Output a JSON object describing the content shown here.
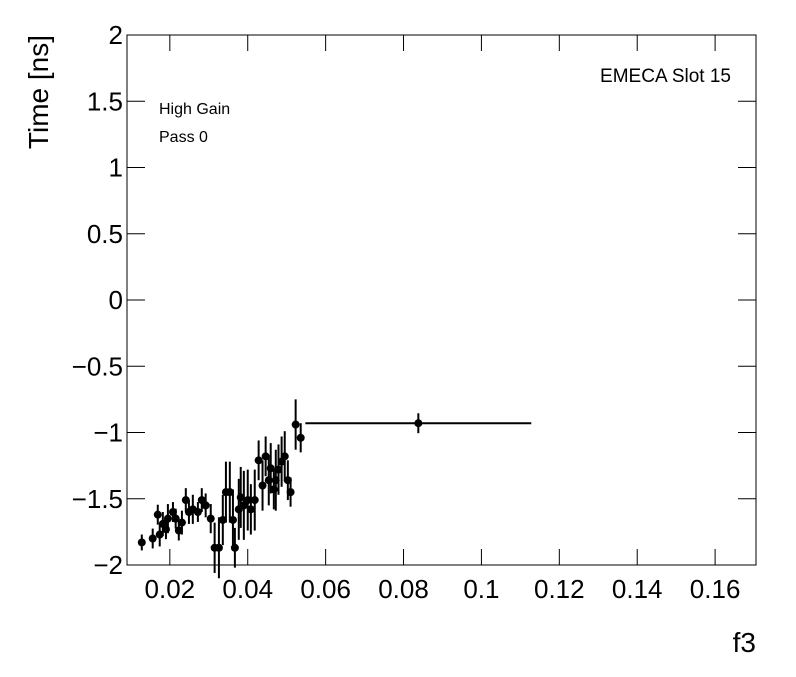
{
  "chart_data": {
    "type": "scatter",
    "x_label": "f3",
    "y_label": "Time [ns]",
    "annotations": [
      "EMECA Slot 15",
      "High Gain",
      "Pass 0"
    ],
    "xlim": [
      0.009,
      0.1705
    ],
    "ylim": [
      -2,
      2
    ],
    "xticks": [
      0.02,
      0.04,
      0.06,
      0.08,
      0.1,
      0.12,
      0.14,
      0.16
    ],
    "yticks": [
      {
        "value": -2,
        "label": "−2"
      },
      {
        "value": -1.5,
        "label": "−1.5"
      },
      {
        "value": -1,
        "label": "−1"
      },
      {
        "value": -0.5,
        "label": "−0.5"
      },
      0,
      0.5,
      1,
      1.5,
      2
    ],
    "series": [
      {
        "color": "#000000",
        "x": [
          0.0128,
          0.0156,
          0.0169,
          0.0174,
          0.0182,
          0.019,
          0.0195,
          0.0208,
          0.0215,
          0.0223,
          0.0231,
          0.0241,
          0.0249,
          0.0259,
          0.0272,
          0.0282,
          0.0292,
          0.0305,
          0.0315,
          0.0326,
          0.0336,
          0.0344,
          0.0354,
          0.0362,
          0.0367,
          0.0377,
          0.0382,
          0.039,
          0.04,
          0.0408,
          0.0418,
          0.0428,
          0.0438,
          0.0446,
          0.0454,
          0.0459,
          0.0467,
          0.0472,
          0.0479,
          0.0487,
          0.0495,
          0.0503,
          0.051,
          0.0523,
          0.0536,
          0.0838
        ],
        "values": [
          -1.83,
          -1.8,
          -1.62,
          -1.77,
          -1.69,
          -1.73,
          -1.65,
          -1.6,
          -1.65,
          -1.74,
          -1.68,
          -1.51,
          -1.6,
          -1.58,
          -1.6,
          -1.51,
          -1.55,
          -1.65,
          -1.87,
          -1.87,
          -1.66,
          -1.45,
          -1.45,
          -1.66,
          -1.87,
          -1.58,
          -1.49,
          -1.55,
          -1.51,
          -1.58,
          -1.51,
          -1.21,
          -1.4,
          -1.18,
          -1.36,
          -1.27,
          -1.43,
          -1.36,
          -1.28,
          -1.22,
          -1.18,
          -1.36,
          -1.45,
          -0.94,
          -1.04,
          -0.93
        ],
        "yerr": [
          0.06,
          0.075,
          0.075,
          0.09,
          0.09,
          0.075,
          0.11,
          0.075,
          0.075,
          0.075,
          0.09,
          0.09,
          0.09,
          0.11,
          0.075,
          0.09,
          0.09,
          0.11,
          0.19,
          0.23,
          0.19,
          0.23,
          0.23,
          0.23,
          0.15,
          0.23,
          0.23,
          0.26,
          0.23,
          0.19,
          0.23,
          0.15,
          0.19,
          0.15,
          0.19,
          0.19,
          0.15,
          0.23,
          0.19,
          0.19,
          0.19,
          0.15,
          0.11,
          0.19,
          0.11,
          0.075
        ],
        "xerr": [
          0,
          0,
          0,
          0,
          0,
          0,
          0,
          0,
          0,
          0,
          0,
          0,
          0,
          0,
          0,
          0,
          0,
          0,
          0,
          0,
          0,
          0,
          0,
          0,
          0,
          0,
          0,
          0,
          0,
          0,
          0,
          0,
          0,
          0,
          0,
          0,
          0,
          0,
          0,
          0,
          0,
          0,
          0,
          0,
          0,
          0.029
        ]
      }
    ]
  }
}
